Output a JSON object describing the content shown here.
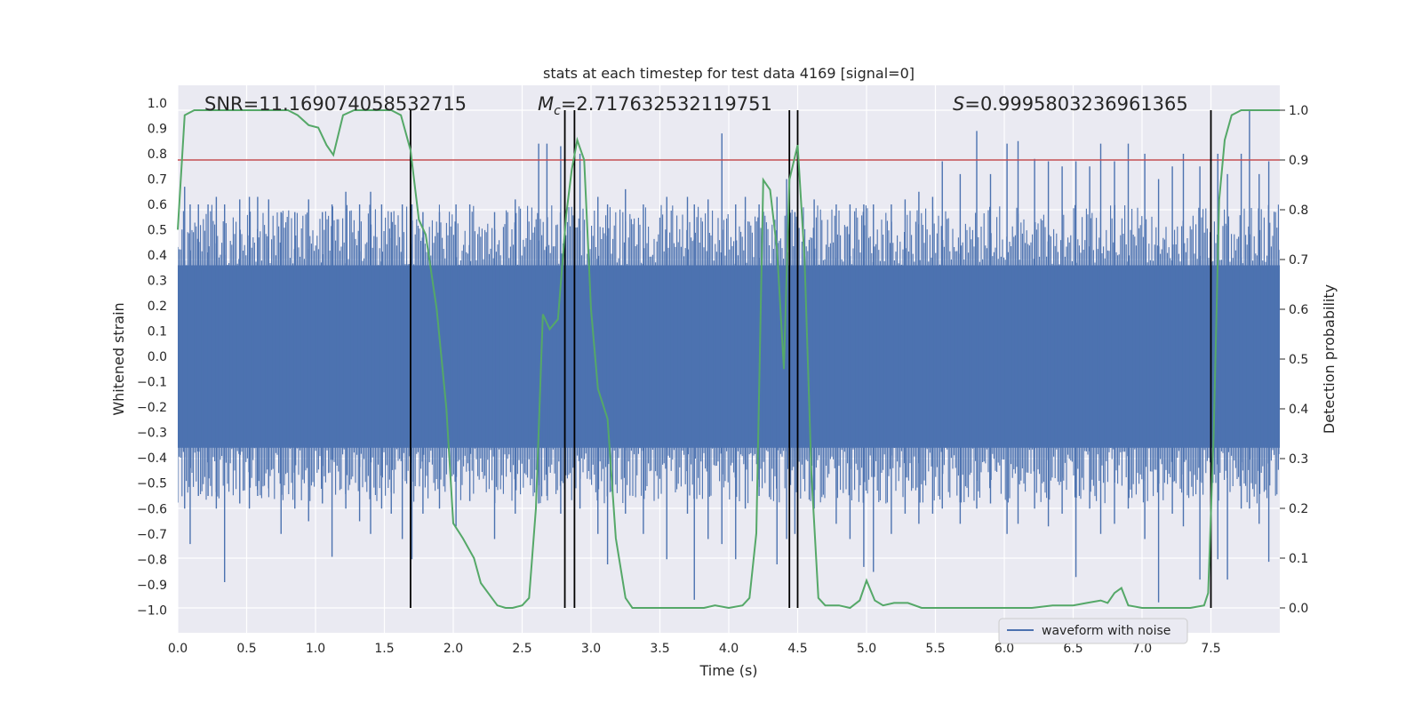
{
  "chart_data": {
    "type": "line",
    "title": "stats at each timestep for test data 4169 [signal=0]",
    "xlabel": "Time (s)",
    "ylabel": "Whitened strain",
    "y2label": "Detection probability",
    "xlim": [
      0.0,
      8.0
    ],
    "ylim": [
      -1.09,
      1.07
    ],
    "y2lim": [
      -0.05,
      1.05
    ],
    "x_ticks": [
      "0.0",
      "0.5",
      "1.0",
      "1.5",
      "2.0",
      "2.5",
      "3.0",
      "3.5",
      "4.0",
      "4.5",
      "5.0",
      "5.5",
      "6.0",
      "6.5",
      "7.0",
      "7.5"
    ],
    "y_ticks": [
      "1.0",
      "0.9",
      "0.8",
      "0.7",
      "0.6",
      "0.5",
      "0.4",
      "0.3",
      "0.2",
      "0.1",
      "0.0",
      "−0.1",
      "−0.2",
      "−0.3",
      "−0.4",
      "−0.5",
      "−0.6",
      "−0.7",
      "−0.8",
      "−0.9",
      "−1.0"
    ],
    "y2_ticks": [
      "1.0",
      "0.9",
      "0.8",
      "0.7",
      "0.6",
      "0.5",
      "0.4",
      "0.3",
      "0.2",
      "0.1",
      "0.0"
    ],
    "annotations": {
      "snr": "SNR=11.169074058532715",
      "mc_symbol": "M",
      "mc_sub": "c",
      "mc_value": "=2.717632532119751",
      "s_symbol": "S",
      "s_value": "=0.9995803236961365"
    },
    "threshold": 0.9,
    "vlines": [
      1.69,
      2.81,
      2.88,
      4.44,
      4.5,
      7.5
    ],
    "legend": [
      "waveform with noise"
    ],
    "waveform": {
      "name": "waveform with noise",
      "color": "#4c72b0",
      "spikes": [
        [
          0.05,
          0.67,
          -0.6
        ],
        [
          0.09,
          0.6,
          -0.74
        ],
        [
          0.15,
          0.6,
          -0.55
        ],
        [
          0.22,
          0.6,
          -0.55
        ],
        [
          0.28,
          0.63,
          -0.6
        ],
        [
          0.34,
          0.6,
          -0.89
        ],
        [
          0.45,
          0.62,
          -0.58
        ],
        [
          0.52,
          0.63,
          -0.6
        ],
        [
          0.58,
          0.63,
          -0.55
        ],
        [
          0.66,
          0.62,
          -0.52
        ],
        [
          0.75,
          0.57,
          -0.7
        ],
        [
          0.85,
          0.57,
          -0.6
        ],
        [
          0.95,
          0.62,
          -0.65
        ],
        [
          1.05,
          0.57,
          -0.58
        ],
        [
          1.12,
          0.6,
          -0.79
        ],
        [
          1.22,
          0.65,
          -0.6
        ],
        [
          1.32,
          0.6,
          -0.65
        ],
        [
          1.4,
          0.65,
          -0.7
        ],
        [
          1.48,
          0.6,
          -0.6
        ],
        [
          1.55,
          0.57,
          -0.62
        ],
        [
          1.63,
          0.6,
          -0.72
        ],
        [
          1.7,
          0.6,
          -0.8
        ],
        [
          1.78,
          0.57,
          -0.62
        ],
        [
          1.9,
          0.57,
          -0.6
        ],
        [
          2.02,
          0.6,
          -0.67
        ],
        [
          2.12,
          0.6,
          -0.57
        ],
        [
          2.3,
          0.57,
          -0.72
        ],
        [
          2.45,
          0.62,
          -0.62
        ],
        [
          2.62,
          0.84,
          -0.58
        ],
        [
          2.68,
          0.84,
          -0.55
        ],
        [
          2.78,
          0.83,
          -0.62
        ],
        [
          2.92,
          0.8,
          -0.6
        ],
        [
          3.05,
          0.63,
          -0.7
        ],
        [
          3.12,
          0.6,
          -0.82
        ],
        [
          3.25,
          0.66,
          -0.62
        ],
        [
          3.38,
          0.6,
          -0.7
        ],
        [
          3.55,
          0.63,
          -0.8
        ],
        [
          3.7,
          0.63,
          -0.62
        ],
        [
          3.75,
          0.6,
          -0.96
        ],
        [
          3.85,
          0.62,
          -0.72
        ],
        [
          3.95,
          0.88,
          -0.74
        ],
        [
          4.05,
          0.6,
          -0.8
        ],
        [
          4.12,
          0.63,
          -0.6
        ],
        [
          4.22,
          0.6,
          -0.55
        ],
        [
          4.35,
          0.63,
          -0.82
        ],
        [
          4.42,
          0.7,
          -0.72
        ],
        [
          4.48,
          0.57,
          -0.7
        ],
        [
          4.62,
          0.62,
          -0.6
        ],
        [
          4.78,
          0.6,
          -0.66
        ],
        [
          4.88,
          0.6,
          -0.72
        ],
        [
          4.98,
          0.6,
          -0.83
        ],
        [
          5.05,
          0.6,
          -0.85
        ],
        [
          5.18,
          0.6,
          -0.7
        ],
        [
          5.28,
          0.62,
          -0.62
        ],
        [
          5.38,
          0.65,
          -0.66
        ],
        [
          5.48,
          0.63,
          -0.62
        ],
        [
          5.55,
          0.77,
          -0.6
        ],
        [
          5.68,
          0.72,
          -0.66
        ],
        [
          5.8,
          0.89,
          -0.6
        ],
        [
          5.9,
          0.72,
          -0.58
        ],
        [
          6.02,
          0.84,
          -0.7
        ],
        [
          6.1,
          0.85,
          -0.66
        ],
        [
          6.22,
          0.78,
          -0.6
        ],
        [
          6.32,
          0.77,
          -0.67
        ],
        [
          6.42,
          0.75,
          -0.62
        ],
        [
          6.52,
          0.77,
          -0.87
        ],
        [
          6.62,
          0.75,
          -0.6
        ],
        [
          6.7,
          0.84,
          -0.7
        ],
        [
          6.8,
          0.77,
          -0.66
        ],
        [
          6.9,
          0.84,
          -0.6
        ],
        [
          7.02,
          0.8,
          -0.72
        ],
        [
          7.12,
          0.7,
          -0.97
        ],
        [
          7.22,
          0.75,
          -0.62
        ],
        [
          7.3,
          0.8,
          -0.67
        ],
        [
          7.42,
          0.75,
          -0.88
        ],
        [
          7.55,
          0.8,
          -0.8
        ],
        [
          7.62,
          0.72,
          -0.88
        ],
        [
          7.72,
          0.8,
          -0.6
        ],
        [
          7.78,
          0.97,
          -0.6
        ],
        [
          7.85,
          0.72,
          -0.66
        ],
        [
          7.92,
          0.77,
          -0.81
        ]
      ]
    },
    "probability": {
      "color": "#55a868",
      "points": [
        [
          0.0,
          0.76
        ],
        [
          0.05,
          0.99
        ],
        [
          0.12,
          1.0
        ],
        [
          0.4,
          1.0
        ],
        [
          0.8,
          1.0
        ],
        [
          0.87,
          0.99
        ],
        [
          0.95,
          0.97
        ],
        [
          1.02,
          0.965
        ],
        [
          1.08,
          0.93
        ],
        [
          1.13,
          0.91
        ],
        [
          1.2,
          0.99
        ],
        [
          1.28,
          1.0
        ],
        [
          1.4,
          1.0
        ],
        [
          1.55,
          1.0
        ],
        [
          1.62,
          0.99
        ],
        [
          1.69,
          0.92
        ],
        [
          1.75,
          0.78
        ],
        [
          1.8,
          0.75
        ],
        [
          1.88,
          0.6
        ],
        [
          1.95,
          0.4
        ],
        [
          2.0,
          0.17
        ],
        [
          2.07,
          0.14
        ],
        [
          2.15,
          0.1
        ],
        [
          2.2,
          0.05
        ],
        [
          2.28,
          0.02
        ],
        [
          2.32,
          0.005
        ],
        [
          2.38,
          0.0
        ],
        [
          2.43,
          0.0
        ],
        [
          2.5,
          0.005
        ],
        [
          2.55,
          0.02
        ],
        [
          2.6,
          0.2
        ],
        [
          2.65,
          0.59
        ],
        [
          2.7,
          0.56
        ],
        [
          2.76,
          0.58
        ],
        [
          2.82,
          0.79
        ],
        [
          2.86,
          0.88
        ],
        [
          2.9,
          0.94
        ],
        [
          2.95,
          0.9
        ],
        [
          3.0,
          0.6
        ],
        [
          3.05,
          0.44
        ],
        [
          3.12,
          0.38
        ],
        [
          3.18,
          0.14
        ],
        [
          3.25,
          0.02
        ],
        [
          3.3,
          0.0
        ],
        [
          3.45,
          0.0
        ],
        [
          3.6,
          0.0
        ],
        [
          3.72,
          0.0
        ],
        [
          3.82,
          0.0
        ],
        [
          3.9,
          0.005
        ],
        [
          4.0,
          0.0
        ],
        [
          4.1,
          0.005
        ],
        [
          4.15,
          0.02
        ],
        [
          4.2,
          0.15
        ],
        [
          4.25,
          0.86
        ],
        [
          4.3,
          0.84
        ],
        [
          4.35,
          0.72
        ],
        [
          4.4,
          0.48
        ],
        [
          4.44,
          0.86
        ],
        [
          4.5,
          0.93
        ],
        [
          4.55,
          0.7
        ],
        [
          4.6,
          0.27
        ],
        [
          4.65,
          0.02
        ],
        [
          4.7,
          0.005
        ],
        [
          4.8,
          0.005
        ],
        [
          4.88,
          0.0
        ],
        [
          4.95,
          0.015
        ],
        [
          5.0,
          0.055
        ],
        [
          5.06,
          0.015
        ],
        [
          5.12,
          0.005
        ],
        [
          5.2,
          0.01
        ],
        [
          5.3,
          0.01
        ],
        [
          5.4,
          0.0
        ],
        [
          5.6,
          0.0
        ],
        [
          6.0,
          0.0
        ],
        [
          6.2,
          0.0
        ],
        [
          6.35,
          0.005
        ],
        [
          6.5,
          0.005
        ],
        [
          6.6,
          0.01
        ],
        [
          6.7,
          0.015
        ],
        [
          6.75,
          0.01
        ],
        [
          6.8,
          0.03
        ],
        [
          6.85,
          0.04
        ],
        [
          6.9,
          0.005
        ],
        [
          7.0,
          0.0
        ],
        [
          7.2,
          0.0
        ],
        [
          7.35,
          0.0
        ],
        [
          7.45,
          0.005
        ],
        [
          7.48,
          0.03
        ],
        [
          7.52,
          0.35
        ],
        [
          7.56,
          0.82
        ],
        [
          7.6,
          0.94
        ],
        [
          7.65,
          0.99
        ],
        [
          7.72,
          1.0
        ],
        [
          7.8,
          1.0
        ],
        [
          8.0,
          1.0
        ]
      ]
    }
  }
}
